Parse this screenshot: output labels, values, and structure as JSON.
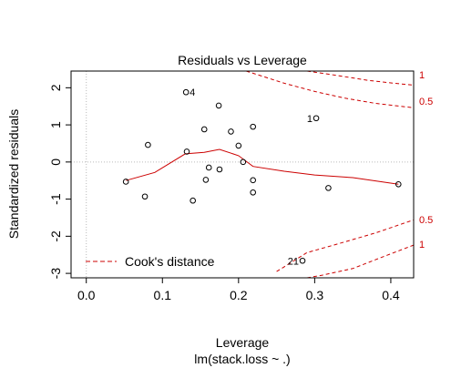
{
  "chart_data": {
    "type": "scatter",
    "title": "Residuals vs Leverage",
    "xlabel": "Leverage",
    "subtitle": "lm(stack.loss ~ .)",
    "ylabel": "Standardized residuals",
    "xlim": [
      -0.02,
      0.43
    ],
    "ylim": [
      -3.12,
      2.45
    ],
    "x_ticks": [
      0.0,
      0.1,
      0.2,
      0.3,
      0.4
    ],
    "x_tick_labels": [
      "0.0",
      "0.1",
      "0.2",
      "0.3",
      "0.4"
    ],
    "y_ticks": [
      -3,
      -2,
      -1,
      0,
      1,
      2
    ],
    "y_tick_labels": [
      "-3",
      "-2",
      "-1",
      "0",
      "1",
      "2"
    ],
    "points": [
      {
        "x": 0.131,
        "y": 1.88
      },
      {
        "x": 0.302,
        "y": 1.18
      },
      {
        "x": 0.174,
        "y": 1.52
      },
      {
        "x": 0.219,
        "y": 0.95
      },
      {
        "x": 0.155,
        "y": 0.88
      },
      {
        "x": 0.19,
        "y": 0.82
      },
      {
        "x": 0.081,
        "y": 0.46
      },
      {
        "x": 0.2,
        "y": 0.44
      },
      {
        "x": 0.132,
        "y": 0.28
      },
      {
        "x": 0.206,
        "y": 0.0
      },
      {
        "x": 0.161,
        "y": -0.15
      },
      {
        "x": 0.175,
        "y": -0.2
      },
      {
        "x": 0.052,
        "y": -0.53
      },
      {
        "x": 0.157,
        "y": -0.48
      },
      {
        "x": 0.219,
        "y": -0.49
      },
      {
        "x": 0.318,
        "y": -0.7
      },
      {
        "x": 0.41,
        "y": -0.6
      },
      {
        "x": 0.219,
        "y": -0.82
      },
      {
        "x": 0.077,
        "y": -0.93
      },
      {
        "x": 0.14,
        "y": -1.04
      },
      {
        "x": 0.284,
        "y": -2.66
      }
    ],
    "point_labels": [
      {
        "label": "4",
        "x": 0.131,
        "y": 1.88
      },
      {
        "label": "1",
        "x": 0.302,
        "y": 1.18
      },
      {
        "label": "21",
        "x": 0.284,
        "y": -2.66
      }
    ],
    "smooth_line": {
      "color": "#cc0000",
      "x": [
        0.052,
        0.09,
        0.13,
        0.155,
        0.175,
        0.2,
        0.219,
        0.26,
        0.3,
        0.35,
        0.41
      ],
      "y": [
        -0.5,
        -0.28,
        0.22,
        0.26,
        0.34,
        0.17,
        -0.12,
        -0.25,
        -0.35,
        -0.42,
        -0.6
      ]
    },
    "reference_line": {
      "y": 0,
      "x": 0,
      "color": "#bbbbbb",
      "style": "dotted"
    },
    "cooks_contours": {
      "color": "#cc0000",
      "style": "dashed",
      "levels": [
        0.5,
        1
      ],
      "upper_labels": [
        "1",
        "0.5"
      ],
      "lower_labels": [
        "0.5",
        "1"
      ],
      "upper": [
        {
          "level": 1,
          "x": [
            0.29,
            0.33,
            0.37,
            0.4,
            0.43
          ],
          "y": [
            2.45,
            2.33,
            2.2,
            2.13,
            2.07
          ]
        },
        {
          "level": 0.5,
          "x": [
            0.21,
            0.26,
            0.3,
            0.34,
            0.38,
            0.43
          ],
          "y": [
            2.45,
            2.12,
            1.9,
            1.72,
            1.58,
            1.46
          ]
        }
      ],
      "lower": [
        {
          "level": 0.5,
          "x": [
            0.25,
            0.29,
            0.33,
            0.38,
            0.43
          ],
          "y": [
            -2.95,
            -2.44,
            -2.21,
            -1.91,
            -1.56
          ]
        },
        {
          "level": 1,
          "x": [
            0.29,
            0.31,
            0.35,
            0.39,
            0.43
          ],
          "y": [
            -3.12,
            -3.05,
            -2.87,
            -2.55,
            -2.24
          ]
        }
      ]
    },
    "legend": {
      "position": "bottom-left",
      "entries": [
        {
          "label": "Cook's distance",
          "color": "#cc0000",
          "style": "dashed"
        }
      ]
    },
    "grid": false
  }
}
